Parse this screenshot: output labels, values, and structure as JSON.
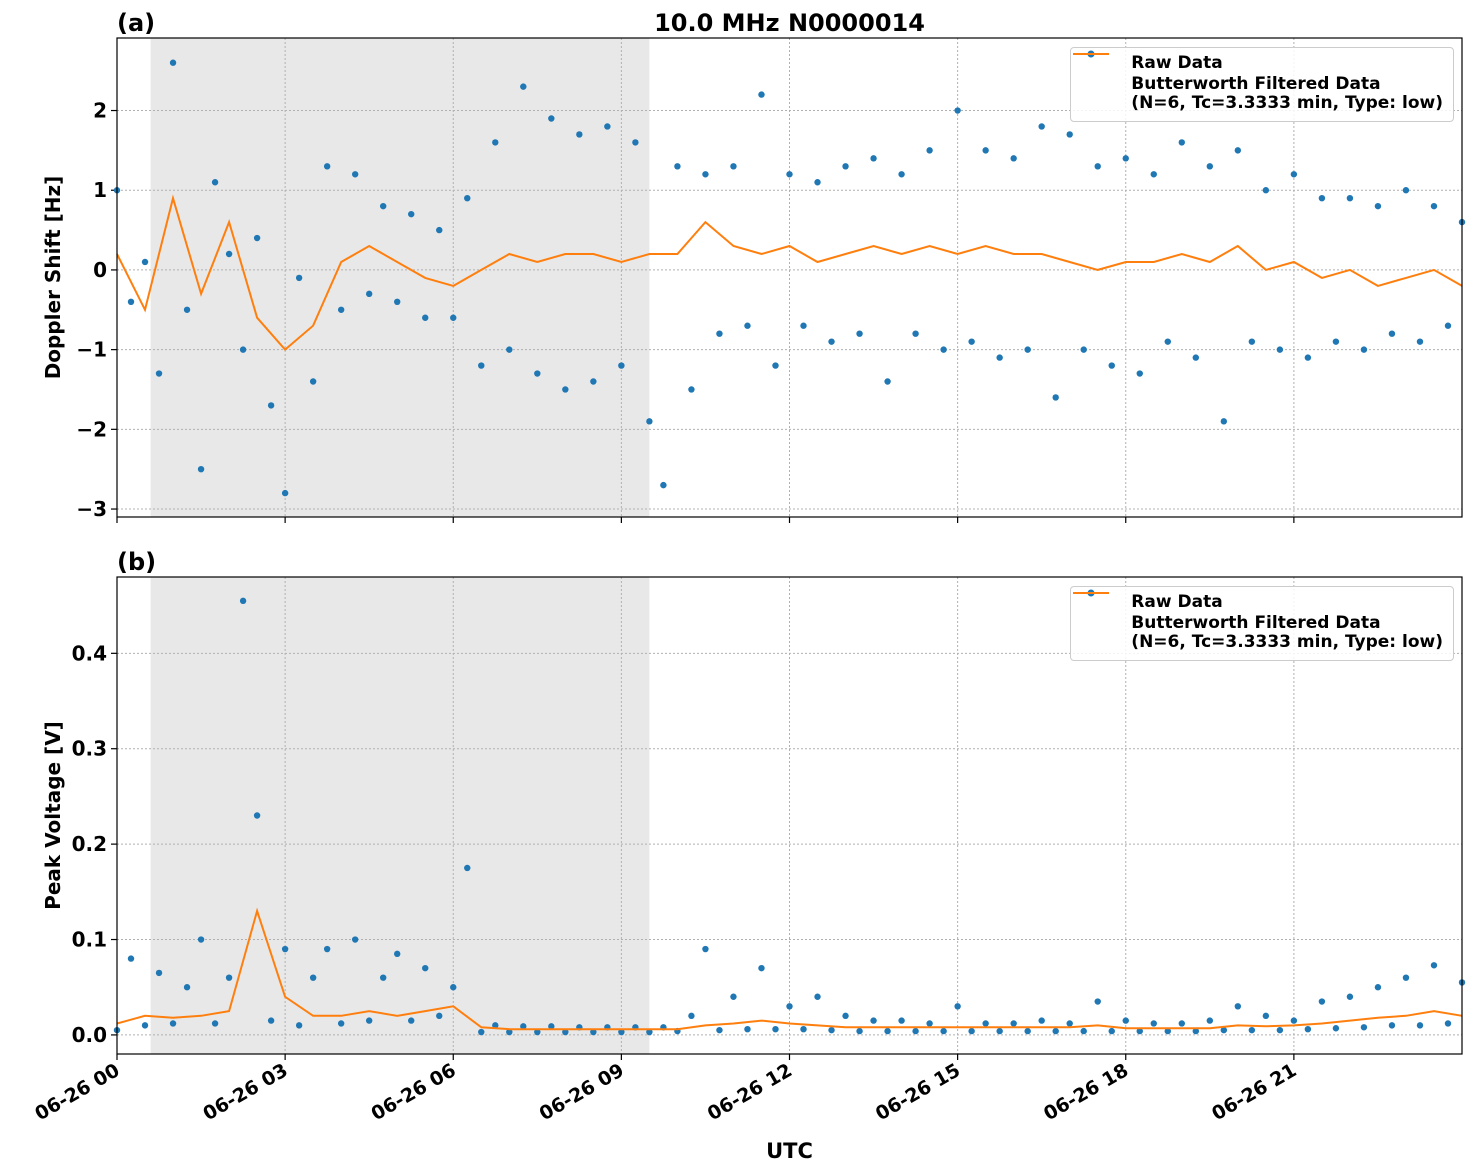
{
  "chart_data": [
    {
      "type": "scatter_line",
      "panel_label": "(a)",
      "title": "10.0 MHz N0000014",
      "ylabel": "Doppler Shift [Hz]",
      "xlim": [
        0,
        24
      ],
      "ylim": [
        -3.1,
        2.91
      ],
      "shade": [
        0.6,
        9.5
      ],
      "grid": true,
      "legend": "upper right",
      "xticks": [
        {
          "value": 0,
          "label": "06-26 00"
        },
        {
          "value": 3,
          "label": "06-26 03"
        },
        {
          "value": 6,
          "label": "06-26 06"
        },
        {
          "value": 9,
          "label": "06-26 09"
        },
        {
          "value": 12,
          "label": "06-26 12"
        },
        {
          "value": 15,
          "label": "06-26 15"
        },
        {
          "value": 18,
          "label": "06-26 18"
        },
        {
          "value": 21,
          "label": "06-26 21"
        }
      ],
      "yticks": [
        {
          "value": -3,
          "label": "−3"
        },
        {
          "value": -2,
          "label": "−2"
        },
        {
          "value": -1,
          "label": "−1"
        },
        0,
        1,
        2
      ],
      "series": [
        {
          "name": "Raw Data",
          "kind": "scatter",
          "color": "#1f77b4",
          "x": [
            0,
            0.25,
            0.5,
            0.75,
            1,
            1.25,
            1.5,
            1.75,
            2,
            2.25,
            2.5,
            2.75,
            3,
            3.25,
            3.5,
            3.75,
            4,
            4.25,
            4.5,
            4.75,
            5,
            5.25,
            5.5,
            5.75,
            6,
            6.25,
            6.5,
            6.75,
            7,
            7.25,
            7.5,
            7.75,
            8,
            8.25,
            8.5,
            8.75,
            9,
            9.25,
            9.5,
            9.75,
            10,
            10.25,
            10.5,
            10.75,
            11,
            11.25,
            11.5,
            11.75,
            12,
            12.25,
            12.5,
            12.75,
            13,
            13.25,
            13.5,
            13.75,
            14,
            14.25,
            14.5,
            14.75,
            15,
            15.25,
            15.5,
            15.75,
            16,
            16.25,
            16.5,
            16.75,
            17,
            17.25,
            17.5,
            17.75,
            18,
            18.25,
            18.5,
            18.75,
            19,
            19.25,
            19.5,
            19.75,
            20,
            20.25,
            20.5,
            20.75,
            21,
            21.25,
            21.5,
            21.75,
            22,
            22.25,
            22.5,
            22.75,
            23,
            23.25,
            23.5,
            23.75,
            24
          ],
          "values": [
            1.0,
            -0.4,
            0.1,
            -1.3,
            2.6,
            -0.5,
            -2.5,
            1.1,
            0.2,
            -1.0,
            0.4,
            -1.7,
            -2.8,
            -0.1,
            -1.4,
            1.3,
            -0.5,
            1.2,
            -0.3,
            0.8,
            -0.4,
            0.7,
            -0.6,
            0.5,
            -0.6,
            0.9,
            -1.2,
            1.6,
            -1.0,
            2.3,
            -1.3,
            1.9,
            -1.5,
            1.7,
            -1.4,
            1.8,
            -1.2,
            1.6,
            -1.9,
            -2.7,
            1.3,
            -1.5,
            1.2,
            -0.8,
            1.3,
            -0.7,
            2.2,
            -1.2,
            1.2,
            -0.7,
            1.1,
            -0.9,
            1.3,
            -0.8,
            1.4,
            -1.4,
            1.2,
            -0.8,
            1.5,
            -1.0,
            2.0,
            -0.9,
            1.5,
            -1.1,
            1.4,
            -1.0,
            1.8,
            -1.6,
            1.7,
            -1.0,
            1.3,
            -1.2,
            1.4,
            -1.3,
            1.2,
            -0.9,
            1.6,
            -1.1,
            1.3,
            -1.9,
            1.5,
            -0.9,
            1.0,
            -1.0,
            1.2,
            -1.1,
            0.9,
            -0.9,
            0.9,
            -1.0,
            0.8,
            -0.8,
            1.0,
            -0.9,
            0.8,
            -0.7,
            0.6
          ]
        },
        {
          "name": "Butterworth Filtered Data\n(N=6, Tc=3.3333 min, Type: low)",
          "kind": "line",
          "color": "#ff7f0e",
          "x": [
            0,
            0.5,
            1,
            1.5,
            2,
            2.5,
            3,
            3.5,
            4,
            4.5,
            5,
            5.5,
            6,
            6.5,
            7,
            7.5,
            8,
            8.5,
            9,
            9.5,
            10,
            10.5,
            11,
            11.5,
            12,
            12.5,
            13,
            13.5,
            14,
            14.5,
            15,
            15.5,
            16,
            16.5,
            17,
            17.5,
            18,
            18.5,
            19,
            19.5,
            20,
            20.5,
            21,
            21.5,
            22,
            22.5,
            23,
            23.5,
            24
          ],
          "values": [
            0.2,
            -0.5,
            0.9,
            -0.3,
            0.6,
            -0.6,
            -1.0,
            -0.7,
            0.1,
            0.3,
            0.1,
            -0.1,
            -0.2,
            0.0,
            0.2,
            0.1,
            0.2,
            0.2,
            0.1,
            0.2,
            0.2,
            0.6,
            0.3,
            0.2,
            0.3,
            0.1,
            0.2,
            0.3,
            0.2,
            0.3,
            0.2,
            0.3,
            0.2,
            0.2,
            0.1,
            0.0,
            0.1,
            0.1,
            0.2,
            0.1,
            0.3,
            0.0,
            0.1,
            -0.1,
            0.0,
            -0.2,
            -0.1,
            0.0,
            -0.2
          ]
        }
      ]
    },
    {
      "type": "scatter_line",
      "panel_label": "(b)",
      "ylabel": "Peak Voltage [V]",
      "xlabel": "UTC",
      "xlim": [
        0,
        24
      ],
      "ylim": [
        -0.02,
        0.48
      ],
      "shade": [
        0.6,
        9.5
      ],
      "grid": true,
      "legend": "upper right",
      "xticks": [
        {
          "value": 0,
          "label": "06-26 00"
        },
        {
          "value": 3,
          "label": "06-26 03"
        },
        {
          "value": 6,
          "label": "06-26 06"
        },
        {
          "value": 9,
          "label": "06-26 09"
        },
        {
          "value": 12,
          "label": "06-26 12"
        },
        {
          "value": 15,
          "label": "06-26 15"
        },
        {
          "value": 18,
          "label": "06-26 18"
        },
        {
          "value": 21,
          "label": "06-26 21"
        }
      ],
      "yticks": [
        {
          "value": 0,
          "label": "0.0"
        },
        0.1,
        0.2,
        0.3,
        0.4
      ],
      "series": [
        {
          "name": "Raw Data",
          "kind": "scatter",
          "color": "#1f77b4",
          "x": [
            0,
            0.25,
            0.5,
            0.75,
            1,
            1.25,
            1.5,
            1.75,
            2,
            2.25,
            2.5,
            2.75,
            3,
            3.25,
            3.5,
            3.75,
            4,
            4.25,
            4.5,
            4.75,
            5,
            5.25,
            5.5,
            5.75,
            6,
            6.25,
            6.5,
            6.75,
            7,
            7.25,
            7.5,
            7.75,
            8,
            8.25,
            8.5,
            8.75,
            9,
            9.25,
            9.5,
            9.75,
            10,
            10.25,
            10.5,
            10.75,
            11,
            11.25,
            11.5,
            11.75,
            12,
            12.25,
            12.5,
            12.75,
            13,
            13.25,
            13.5,
            13.75,
            14,
            14.25,
            14.5,
            14.75,
            15,
            15.25,
            15.5,
            15.75,
            16,
            16.25,
            16.5,
            16.75,
            17,
            17.25,
            17.5,
            17.75,
            18,
            18.25,
            18.5,
            18.75,
            19,
            19.25,
            19.5,
            19.75,
            20,
            20.25,
            20.5,
            20.75,
            21,
            21.25,
            21.5,
            21.75,
            22,
            22.25,
            22.5,
            22.75,
            23,
            23.25,
            23.5,
            23.75,
            24
          ],
          "values": [
            0.005,
            0.08,
            0.01,
            0.065,
            0.012,
            0.05,
            0.1,
            0.012,
            0.06,
            0.455,
            0.23,
            0.015,
            0.09,
            0.01,
            0.06,
            0.09,
            0.012,
            0.1,
            0.015,
            0.06,
            0.085,
            0.015,
            0.07,
            0.02,
            0.05,
            0.175,
            0.003,
            0.01,
            0.003,
            0.009,
            0.003,
            0.009,
            0.003,
            0.008,
            0.003,
            0.008,
            0.003,
            0.008,
            0.003,
            0.008,
            0.004,
            0.02,
            0.09,
            0.005,
            0.04,
            0.006,
            0.07,
            0.006,
            0.03,
            0.006,
            0.04,
            0.005,
            0.02,
            0.004,
            0.015,
            0.004,
            0.015,
            0.004,
            0.012,
            0.004,
            0.03,
            0.004,
            0.012,
            0.004,
            0.012,
            0.004,
            0.015,
            0.004,
            0.012,
            0.004,
            0.035,
            0.004,
            0.015,
            0.004,
            0.012,
            0.004,
            0.012,
            0.004,
            0.015,
            0.005,
            0.03,
            0.005,
            0.02,
            0.005,
            0.015,
            0.006,
            0.035,
            0.007,
            0.04,
            0.008,
            0.05,
            0.01,
            0.06,
            0.01,
            0.073,
            0.012,
            0.055
          ]
        },
        {
          "name": "Butterworth Filtered Data\n(N=6, Tc=3.3333 min, Type: low)",
          "kind": "line",
          "color": "#ff7f0e",
          "x": [
            0,
            0.5,
            1,
            1.5,
            2,
            2.5,
            3,
            3.5,
            4,
            4.5,
            5,
            5.5,
            6,
            6.5,
            7,
            7.5,
            8,
            8.5,
            9,
            9.5,
            10,
            10.5,
            11,
            11.5,
            12,
            12.5,
            13,
            13.5,
            14,
            14.5,
            15,
            15.5,
            16,
            16.5,
            17,
            17.5,
            18,
            18.5,
            19,
            19.5,
            20,
            20.5,
            21,
            21.5,
            22,
            22.5,
            23,
            23.5,
            24
          ],
          "values": [
            0.012,
            0.02,
            0.018,
            0.02,
            0.025,
            0.13,
            0.04,
            0.02,
            0.02,
            0.025,
            0.02,
            0.025,
            0.03,
            0.008,
            0.006,
            0.006,
            0.006,
            0.006,
            0.006,
            0.006,
            0.006,
            0.01,
            0.012,
            0.015,
            0.012,
            0.01,
            0.008,
            0.008,
            0.008,
            0.008,
            0.008,
            0.008,
            0.008,
            0.008,
            0.008,
            0.01,
            0.007,
            0.007,
            0.007,
            0.007,
            0.01,
            0.009,
            0.01,
            0.012,
            0.015,
            0.018,
            0.02,
            0.025,
            0.02
          ]
        }
      ]
    }
  ]
}
